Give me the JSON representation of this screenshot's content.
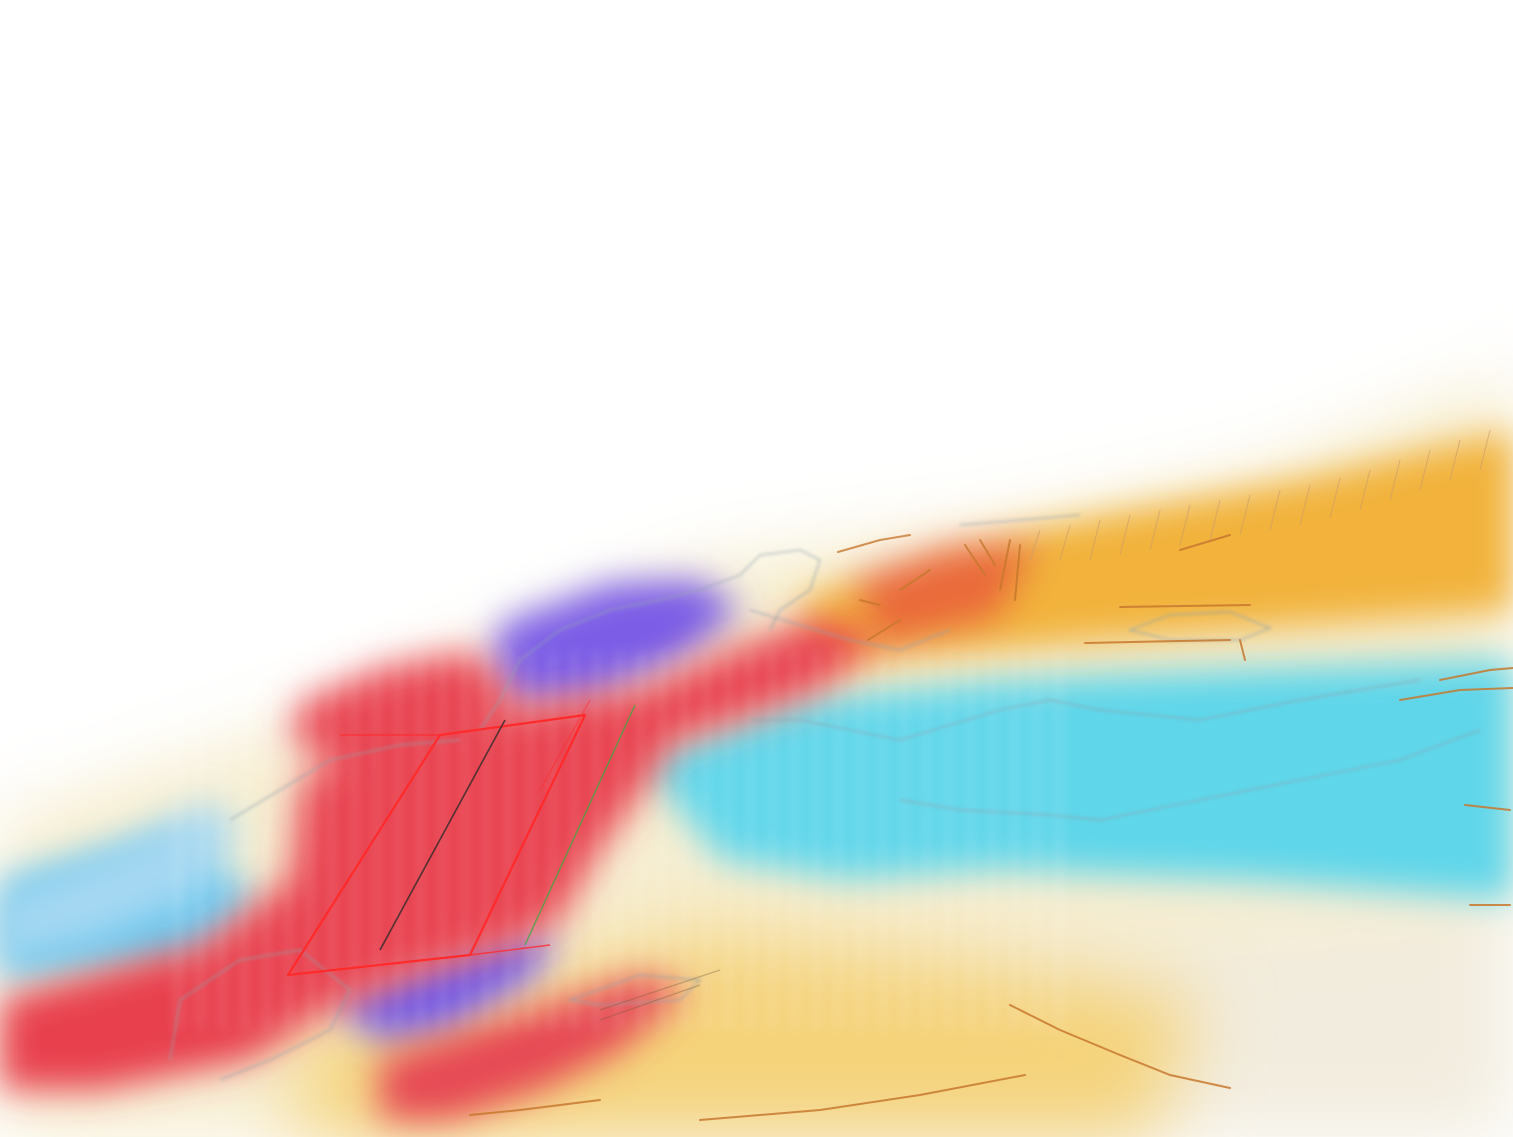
{
  "scene": {
    "kind": "3d-volume-render",
    "background": "#ffffff",
    "colormap": {
      "strong_positive": "#e8404e",
      "positive": "#f09a3a",
      "weak_positive": "#f5d37a",
      "neutral": "#f4f1e6",
      "weak_negative": "#b8ecf2",
      "negative": "#5fd6ea",
      "strong_negative": "#7a5ce6"
    },
    "overlays": {
      "coastline_color": "#8fa3ad",
      "fault_color": "#c7782e",
      "slice_outline_color": "#ff2a2a",
      "slice_edge_color": "#2a2a2a",
      "slice_edge_alt_color": "#3ea83e"
    }
  }
}
